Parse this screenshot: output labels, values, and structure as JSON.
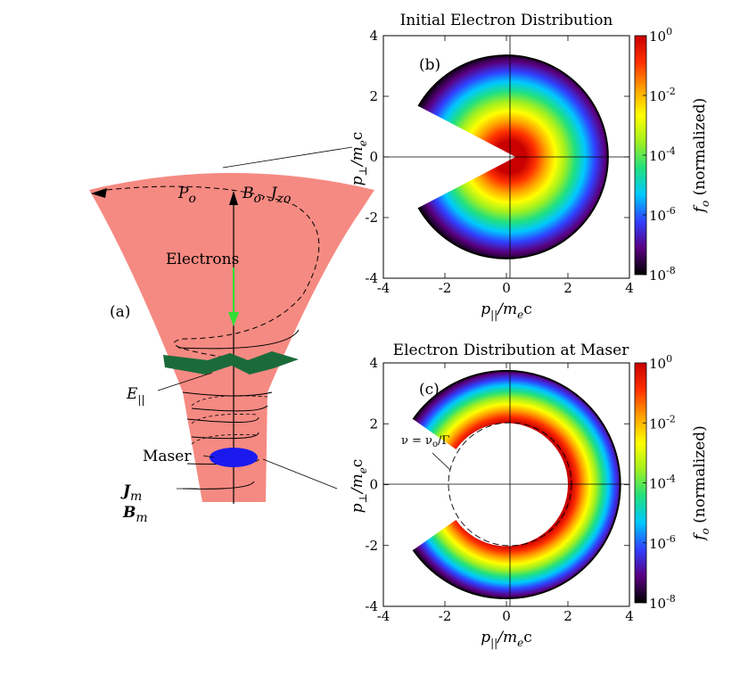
{
  "panel_a": {
    "label": "(a)",
    "P_label": "P",
    "P_sub": "o",
    "B_label": "B",
    "B_sub": "o",
    "J_label": "J",
    "J_sub": "zo",
    "electrons_label": "Electrons",
    "E_label": "E",
    "E_sub": "||",
    "maser_label": "Maser",
    "Jm_label": "J",
    "Jm_sub": "m",
    "Bm_label": "B",
    "Bm_sub": "m",
    "colors": {
      "cone": "#f58a82",
      "fold": "#1b6b3a",
      "maser": "#1a1aef",
      "arrow": "#33dd33"
    }
  },
  "panel_b": {
    "title": "Initial Electron Distribution",
    "label": "(b)"
  },
  "panel_c": {
    "title": "Electron Distribution at Maser",
    "label": "(c)",
    "annotation": "ν = ν",
    "annotation_sub": "o",
    "annotation_tail": "/Γ"
  },
  "axes": {
    "x_label": "p",
    "x_label_sub": "||",
    "x_label_tail": "/m",
    "x_label_sub2": "e",
    "x_label_end": "c",
    "y_label": "p",
    "y_label_sub": "⊥",
    "y_label_tail": "/m",
    "y_label_sub2": "e",
    "y_label_end": "c",
    "ticks": [
      "-4",
      "-2",
      "0",
      "2",
      "4"
    ]
  },
  "colorbar": {
    "label_f": "f",
    "label_sub": "o",
    "label_tail": " (normalized)",
    "ticks": [
      "10",
      "10",
      "10",
      "10",
      "10"
    ],
    "exponents": [
      "0",
      "-2",
      "-4",
      "-6",
      "-8"
    ],
    "stops": [
      "#000000",
      "#5a0080",
      "#3040ff",
      "#00c8ff",
      "#20e080",
      "#a0f020",
      "#ffff00",
      "#ffa000",
      "#ff3000",
      "#c80000"
    ]
  },
  "chart_data": [
    {
      "type": "heatmap",
      "title": "Initial Electron Distribution",
      "xlabel": "p||/mec",
      "ylabel": "p⊥/mec",
      "xlim": [
        -4,
        4
      ],
      "ylim": [
        -4,
        4
      ],
      "colorbar_label": "fo (normalized)",
      "colorbar_range": [
        1e-08,
        1
      ],
      "distribution": {
        "inner_radius": 0.3,
        "outer_radius": 3.3,
        "loss_cone_half_angle_deg": 30,
        "peak_center": [
          0.5,
          0
        ]
      }
    },
    {
      "type": "heatmap",
      "title": "Electron Distribution at Maser",
      "xlabel": "p||/mec",
      "ylabel": "p⊥/mec",
      "xlim": [
        -4,
        4
      ],
      "ylim": [
        -4,
        4
      ],
      "colorbar_label": "fo (normalized)",
      "colorbar_range": [
        1e-08,
        1
      ],
      "distribution": {
        "inner_radius": 2.0,
        "outer_radius": 3.7,
        "loss_cone_half_angle_deg": 35,
        "resonance_circle": {
          "center": [
            0,
            0
          ],
          "radius": 2.0
        }
      }
    }
  ]
}
